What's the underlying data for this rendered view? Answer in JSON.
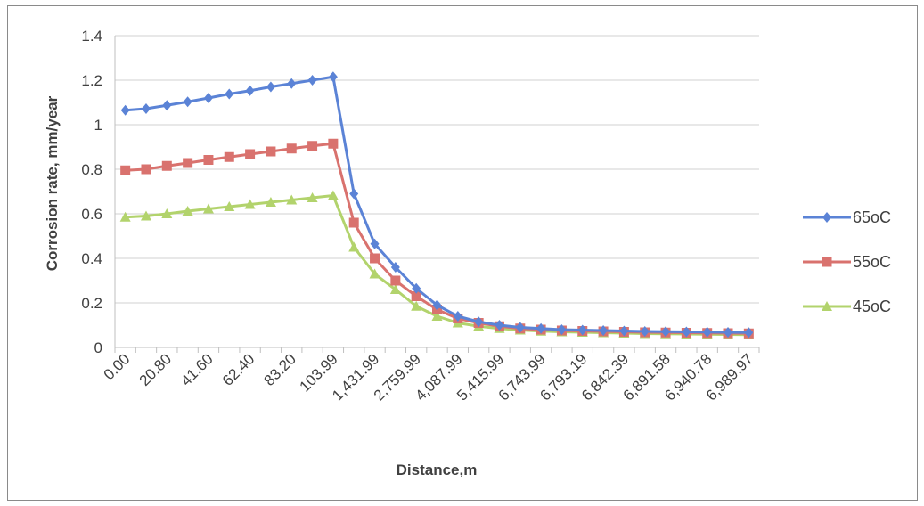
{
  "chart_data": {
    "type": "line",
    "title": "",
    "xlabel": "Distance,m",
    "ylabel": "Corrosion rate, mm/year",
    "ylim": [
      0,
      1.4
    ],
    "yticks": [
      "0",
      "0.2",
      "0.4",
      "0.6",
      "0.8",
      "1",
      "1.2",
      "1.4"
    ],
    "grid": true,
    "legend": "right",
    "x_tick_labels": [
      "0.00",
      "20.80",
      "41.60",
      "62.40",
      "83.20",
      "103.99",
      "1,431.99",
      "2,759.99",
      "4,087.99",
      "5,415.99",
      "6,743.99",
      "6,793.19",
      "6,842.39",
      "6,891.58",
      "6,940.78",
      "6,989.97"
    ],
    "n_points": 31,
    "series": [
      {
        "name": "65oC",
        "color": "#5b83d6",
        "marker": "diamond",
        "values": [
          1.065,
          1.072,
          1.087,
          1.103,
          1.12,
          1.138,
          1.153,
          1.17,
          1.185,
          1.2,
          1.215,
          0.69,
          0.465,
          0.36,
          0.265,
          0.19,
          0.14,
          0.115,
          0.1,
          0.09,
          0.085,
          0.08,
          0.078,
          0.076,
          0.074,
          0.072,
          0.071,
          0.07,
          0.069,
          0.068,
          0.067
        ]
      },
      {
        "name": "55oC",
        "color": "#d9726e",
        "marker": "square",
        "values": [
          0.795,
          0.8,
          0.815,
          0.828,
          0.842,
          0.855,
          0.868,
          0.88,
          0.893,
          0.905,
          0.915,
          0.56,
          0.4,
          0.3,
          0.23,
          0.17,
          0.13,
          0.11,
          0.095,
          0.085,
          0.08,
          0.076,
          0.074,
          0.072,
          0.07,
          0.068,
          0.067,
          0.066,
          0.065,
          0.064,
          0.063
        ]
      },
      {
        "name": "45oC",
        "color": "#b2d36c",
        "marker": "triangle",
        "values": [
          0.585,
          0.59,
          0.6,
          0.612,
          0.622,
          0.632,
          0.642,
          0.652,
          0.662,
          0.672,
          0.682,
          0.45,
          0.33,
          0.26,
          0.185,
          0.14,
          0.11,
          0.095,
          0.085,
          0.078,
          0.073,
          0.07,
          0.068,
          0.066,
          0.064,
          0.062,
          0.061,
          0.06,
          0.059,
          0.058,
          0.057
        ]
      }
    ]
  }
}
